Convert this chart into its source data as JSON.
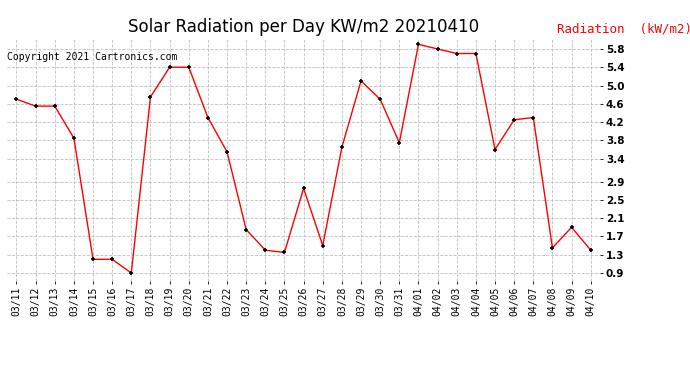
{
  "title": "Solar Radiation per Day KW/m2 20210410",
  "copyright": "Copyright 2021 Cartronics.com",
  "legend_label": "Radiation  (kW/m2)",
  "dates": [
    "03/11",
    "03/12",
    "03/13",
    "03/14",
    "03/15",
    "03/16",
    "03/17",
    "03/18",
    "03/19",
    "03/20",
    "03/21",
    "03/22",
    "03/23",
    "03/24",
    "03/25",
    "03/26",
    "03/27",
    "03/28",
    "03/29",
    "03/30",
    "03/31",
    "04/01",
    "04/02",
    "04/03",
    "04/04",
    "04/05",
    "04/06",
    "04/07",
    "04/08",
    "04/09",
    "04/10"
  ],
  "values": [
    4.7,
    4.55,
    4.55,
    3.85,
    1.2,
    1.2,
    0.9,
    4.75,
    5.4,
    5.4,
    4.3,
    3.55,
    1.85,
    1.4,
    1.35,
    2.75,
    1.5,
    3.65,
    5.1,
    4.7,
    3.75,
    5.9,
    5.8,
    5.7,
    5.7,
    3.6,
    4.25,
    4.3,
    1.45,
    1.9,
    1.4
  ],
  "line_color": "red",
  "marker_color": "black",
  "yticks": [
    0.9,
    1.3,
    1.7,
    2.1,
    2.5,
    2.9,
    3.4,
    3.8,
    4.2,
    4.6,
    5.0,
    5.4,
    5.8
  ],
  "ymin": 0.72,
  "ymax": 6.05,
  "bg_color": "white",
  "grid_color": "#c0c0c0",
  "title_fontsize": 12,
  "copyright_fontsize": 7,
  "legend_fontsize": 9,
  "tick_fontsize": 7.5,
  "xtick_fontsize": 7
}
